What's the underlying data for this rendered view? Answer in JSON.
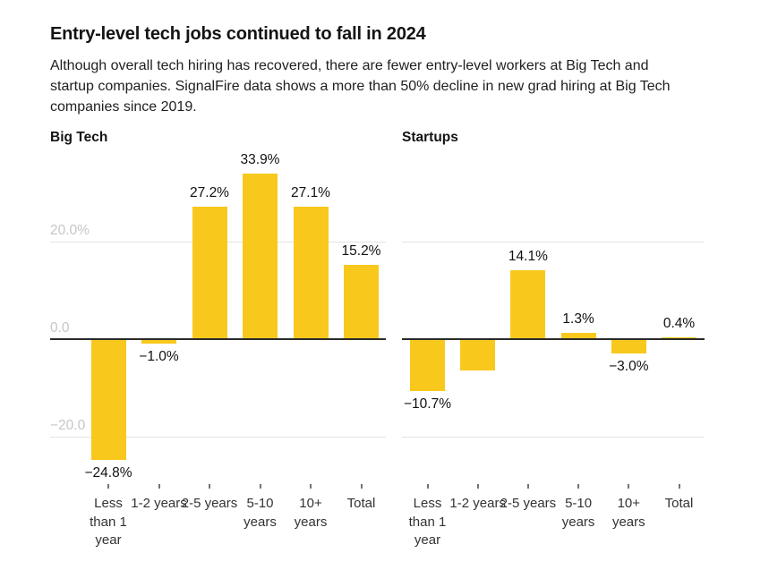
{
  "header": {
    "title": "Entry-level tech jobs continued to fall in 2024",
    "subtitle": "Although overall tech hiring has recovered, there are fewer entry-level workers at Big Tech and startup companies. SignalFire data shows a more than 50% decline in new grad hiring at Big Tech companies since 2019."
  },
  "colors": {
    "bar": "#F8C81C",
    "baseline": "#2A2A2A",
    "gridline": "#E3E3E3",
    "axis_text": "#C6C6C6",
    "value_text": "#111111",
    "category_text": "#333333"
  },
  "chart_data": [
    {
      "type": "bar",
      "title": "Big Tech",
      "unit": "%",
      "categories": [
        "Less than 1 year",
        "1-2 years",
        "2-5 years",
        "5-10 years",
        "10+ years",
        "Total"
      ],
      "values": [
        -24.8,
        -1.0,
        27.2,
        33.9,
        27.1,
        15.2
      ],
      "data_labels": [
        "−24.8%",
        "−1.0%",
        "27.2%",
        "33.9%",
        "27.1%",
        "15.2%"
      ],
      "yticks": [
        {
          "value": 20,
          "label": "20.0%"
        },
        {
          "value": 0,
          "label": "0.0"
        },
        {
          "value": -20,
          "label": "−20.0"
        }
      ],
      "ylim": [
        -30,
        40
      ],
      "grid": true,
      "legend": null,
      "xlabel": "",
      "ylabel": ""
    },
    {
      "type": "bar",
      "title": "Startups",
      "unit": "%",
      "categories": [
        "Less than 1 year",
        "1-2 years",
        "2-5 years",
        "5-10 years",
        "10+ years",
        "Total"
      ],
      "values": [
        -10.7,
        -6.4,
        14.1,
        1.3,
        -3.0,
        0.4
      ],
      "data_labels": [
        "−10.7%",
        "",
        "14.1%",
        "1.3%",
        "−3.0%",
        "0.4%"
      ],
      "yticks": [
        {
          "value": 20,
          "label": ""
        },
        {
          "value": 0,
          "label": ""
        },
        {
          "value": -20,
          "label": ""
        }
      ],
      "ylim": [
        -30,
        40
      ],
      "grid": true,
      "legend": null,
      "xlabel": "",
      "ylabel": ""
    }
  ]
}
